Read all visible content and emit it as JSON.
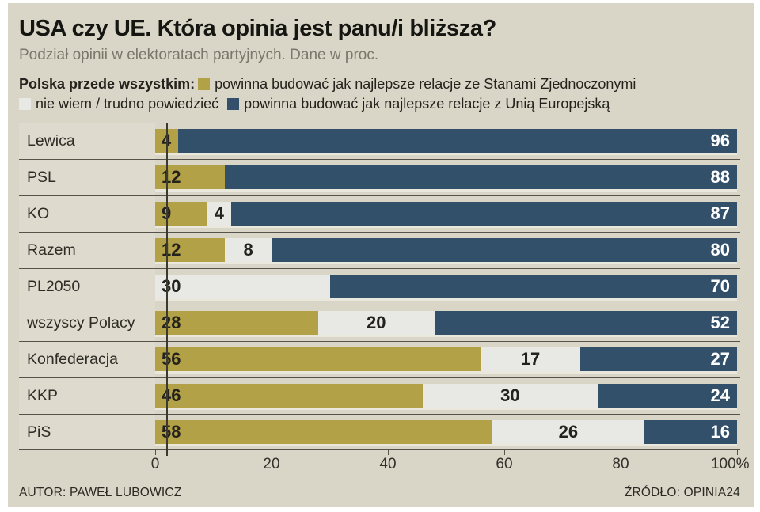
{
  "title": "USA czy UE. Która opinia jest panu/i bliższa?",
  "subtitle": "Podział opinii w elektoratach partyjnych. Dane w proc.",
  "legend": {
    "intro": "Polska przede wszystkim:",
    "items": [
      {
        "key": "usa",
        "label": "powinna budować jak najlepsze relacje ze Stanami Zjednoczonymi",
        "color": "#b3a148"
      },
      {
        "key": "dk",
        "label": "nie wiem / trudno powiedzieć",
        "color": "#e8e9e4"
      },
      {
        "key": "eu",
        "label": "powinna budować jak najlepsze relacje z Unią Europejską",
        "color": "#32506a"
      }
    ]
  },
  "chart_data": {
    "type": "bar",
    "stacked": true,
    "orientation": "horizontal",
    "unit": "percent",
    "xlim": [
      0,
      100
    ],
    "grid": false,
    "categories": [
      "Lewica",
      "PSL",
      "KO",
      "Razem",
      "PL2050",
      "wszyscy Polacy",
      "Konfederacja",
      "KKP",
      "PiS"
    ],
    "rows": [
      {
        "label": "Lewica",
        "segments": [
          {
            "role": "usa",
            "value": 4,
            "label": "4",
            "align": "left"
          },
          {
            "role": "eu",
            "value": 96,
            "label": "96",
            "align": "right"
          }
        ]
      },
      {
        "label": "PSL",
        "segments": [
          {
            "role": "usa",
            "value": 12,
            "label": "12",
            "align": "left"
          },
          {
            "role": "eu",
            "value": 88,
            "label": "88",
            "align": "right"
          }
        ]
      },
      {
        "label": "KO",
        "segments": [
          {
            "role": "usa",
            "value": 9,
            "label": "9",
            "align": "left"
          },
          {
            "role": "dk",
            "value": 4,
            "label": "4",
            "align": "center"
          },
          {
            "role": "eu",
            "value": 87,
            "label": "87",
            "align": "right"
          }
        ]
      },
      {
        "label": "Razem",
        "segments": [
          {
            "role": "usa",
            "value": 12,
            "label": "12",
            "align": "left"
          },
          {
            "role": "dk",
            "value": 8,
            "label": "8",
            "align": "center"
          },
          {
            "role": "eu",
            "value": 80,
            "label": "80",
            "align": "right"
          }
        ]
      },
      {
        "label": "PL2050",
        "segments": [
          {
            "role": "dk",
            "value": 30,
            "label": "30",
            "align": "left"
          },
          {
            "role": "eu",
            "value": 70,
            "label": "70",
            "align": "right"
          }
        ]
      },
      {
        "label": "wszyscy Polacy",
        "segments": [
          {
            "role": "usa",
            "value": 28,
            "label": "28",
            "align": "left"
          },
          {
            "role": "dk",
            "value": 20,
            "label": "20",
            "align": "center"
          },
          {
            "role": "eu",
            "value": 52,
            "label": "52",
            "align": "right"
          }
        ]
      },
      {
        "label": "Konfederacja",
        "segments": [
          {
            "role": "usa",
            "value": 56,
            "label": "56",
            "align": "left"
          },
          {
            "role": "dk",
            "value": 17,
            "label": "17",
            "align": "center"
          },
          {
            "role": "eu",
            "value": 27,
            "label": "27",
            "align": "right"
          }
        ]
      },
      {
        "label": "KKP",
        "segments": [
          {
            "role": "usa",
            "value": 46,
            "label": "46",
            "align": "left"
          },
          {
            "role": "dk",
            "value": 30,
            "label": "30",
            "align": "center"
          },
          {
            "role": "eu",
            "value": 24,
            "label": "24",
            "align": "right"
          }
        ]
      },
      {
        "label": "PiS",
        "segments": [
          {
            "role": "usa",
            "value": 58,
            "label": "58",
            "align": "left"
          },
          {
            "role": "dk",
            "value": 26,
            "label": "26",
            "align": "center"
          },
          {
            "role": "eu",
            "value": 16,
            "label": "16",
            "align": "right"
          }
        ]
      }
    ],
    "xticks": [
      {
        "value": 0,
        "label": "0"
      },
      {
        "value": 20,
        "label": "20"
      },
      {
        "value": 40,
        "label": "40"
      },
      {
        "value": 60,
        "label": "60"
      },
      {
        "value": 80,
        "label": "80"
      },
      {
        "value": 100,
        "label": "100%"
      }
    ]
  },
  "footer": {
    "author": "AUTOR: PAWEŁ LUBOWICZ",
    "source": "ŹRÓDŁO: OPINIA24"
  },
  "colors": {
    "canvas": "#dad6c7",
    "usa": "#b3a148",
    "dk": "#e8e9e4",
    "eu": "#32506a",
    "separator": "#55534a"
  }
}
